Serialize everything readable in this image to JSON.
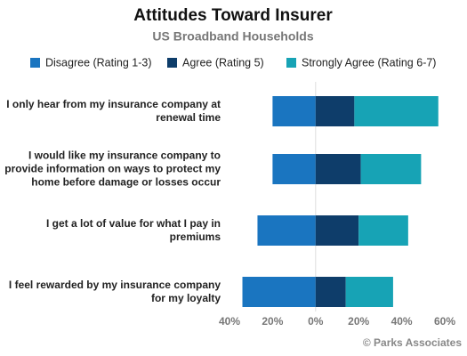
{
  "chart_data": {
    "type": "diverging-bar",
    "title": "Attitudes Toward Insurer",
    "subtitle": "US Broadband Households",
    "categories": [
      "I only hear from my insurance company at renewal time",
      "I would like my insurance company to provide information on ways to protect my home before damage or losses occur",
      "I get a lot of value for what I pay in premiums",
      "I feel rewarded by my insurance company for my loyalty"
    ],
    "series": [
      {
        "name": "Disagree (Rating 1-3)",
        "color": "#1a75c0",
        "values": [
          -20,
          -20,
          -27,
          -34
        ]
      },
      {
        "name": "Agree (Rating 5)",
        "color": "#0e3d6a",
        "values": [
          18,
          21,
          20,
          14
        ]
      },
      {
        "name": "Strongly Agree (Rating 6-7)",
        "color": "#17a3b5",
        "values": [
          39,
          28,
          23,
          22
        ]
      }
    ],
    "xlim": [
      -40,
      60
    ],
    "xticks": [
      {
        "value": -40,
        "label": "40%"
      },
      {
        "value": -20,
        "label": "20%"
      },
      {
        "value": 0,
        "label": "0%"
      },
      {
        "value": 20,
        "label": "20%"
      },
      {
        "value": 40,
        "label": "40%"
      },
      {
        "value": 60,
        "label": "60%"
      }
    ],
    "source": "© Parks Associates"
  }
}
